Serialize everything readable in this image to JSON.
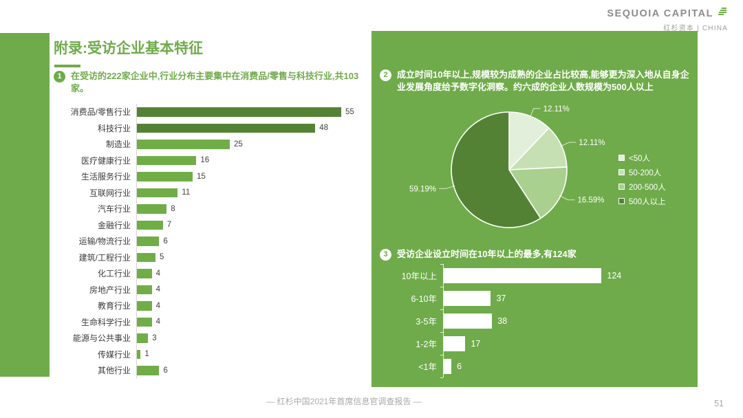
{
  "page": {
    "title": "附录:受访企业基本特征",
    "footer": "— 红杉中国2021年首席信息官调查报告 —",
    "page_number": "51"
  },
  "header": {
    "logo_title": "SEQUOIA CAPITAL",
    "logo_subtitle": "红杉资本 | CHINA",
    "logo_icon": "sequoia-tree-icon"
  },
  "colors": {
    "green": "#6FAB4A",
    "bar_green": "#70AD47",
    "dark_green": "#548235",
    "panel_green": "#6FAB4A",
    "axis_gray": "#D6D6D6",
    "text_dark": "#3B3B3B",
    "footer_gray": "#A9A9A9",
    "white": "#FFFFFF"
  },
  "notes": [
    {
      "num": "1",
      "text": "在受访的222家企业中,行业分布主要集中在消费品/零售与科技行业,共103家。"
    },
    {
      "num": "2",
      "text": "成立时间10年以上,规模较为成熟的企业占比较高,能够更为深入地从自身企业发展角度给予数字化洞察。约六成的企业人数规模为500人以上"
    },
    {
      "num": "3",
      "text": "受访企业设立时间在10年以上的最多,有124家"
    }
  ],
  "chart_data": [
    {
      "type": "bar",
      "orientation": "horizontal",
      "title": "在受访的222家企业中,行业分布主要集中在消费品/零售与科技行业,共103家。",
      "categories": [
        "消费品/零售行业",
        "科技行业",
        "制造业",
        "医疗健康行业",
        "生活服务行业",
        "互联网行业",
        "汽车行业",
        "金融行业",
        "运输/物流行业",
        "建筑/工程行业",
        "化工行业",
        "房地产行业",
        "教育行业",
        "生命科学行业",
        "能源与公共事业",
        "传媒行业",
        "其他行业"
      ],
      "values": [
        55,
        48,
        25,
        16,
        15,
        11,
        8,
        7,
        6,
        5,
        4,
        4,
        4,
        4,
        3,
        1,
        6
      ],
      "highlight_first_n": 2,
      "xlim": [
        0,
        60
      ],
      "grid": false,
      "value_labels": true
    },
    {
      "type": "pie",
      "title": "成立时间10年以上,规模较为成熟的企业占比较高,能够更为深入地从自身企业发展角度给予数字化洞察。约六成的企业人数规模为500人以上",
      "categories": [
        "<50人",
        "50-200人",
        "200-500人",
        "500人以上"
      ],
      "values": [
        12.11,
        12.11,
        16.59,
        59.19
      ],
      "labels": [
        "12.11%",
        "12.11%",
        "16.59%",
        "59.19%"
      ],
      "colors": [
        "#E2EFDA",
        "#C6E0B4",
        "#A9D08E",
        "#548235"
      ],
      "start_angle": 0,
      "legend_position": "right"
    },
    {
      "type": "bar",
      "orientation": "horizontal",
      "title": "受访企业设立时间在10年以上的最多,有124家",
      "categories": [
        "10年以上",
        "6-10年",
        "3-5年",
        "1-2年",
        "<1年"
      ],
      "values": [
        124,
        37,
        38,
        17,
        6
      ],
      "xlim": [
        0,
        135
      ],
      "grid": false,
      "value_labels": true
    }
  ]
}
